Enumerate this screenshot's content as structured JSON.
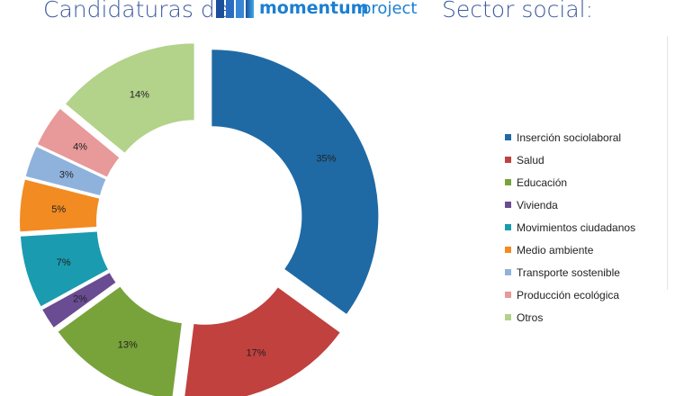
{
  "header": {
    "left_text": "Candidaturas de",
    "logo_text": "momentum project",
    "right_text": "Sector social:"
  },
  "chart_data": {
    "type": "pie",
    "categories": [
      "Inserción sociolaboral",
      "Salud",
      "Educación",
      "Vivienda",
      "Movimientos ciudadanos",
      "Medio ambiente",
      "Transporte sostenible",
      "Producción ecológica",
      "Otros"
    ],
    "values": [
      35,
      17,
      13,
      2,
      7,
      5,
      3,
      4,
      14
    ],
    "labels": [
      "35%",
      "17%",
      "13%",
      "2%",
      "7%",
      "5%",
      "3%",
      "4%",
      "14%"
    ],
    "colors": [
      "#1f6aa5",
      "#c0413e",
      "#78a33b",
      "#6a4c93",
      "#1a9bb0",
      "#f28b22",
      "#8fb2dc",
      "#e8999a",
      "#b3d28a"
    ],
    "legend_position": "right"
  }
}
